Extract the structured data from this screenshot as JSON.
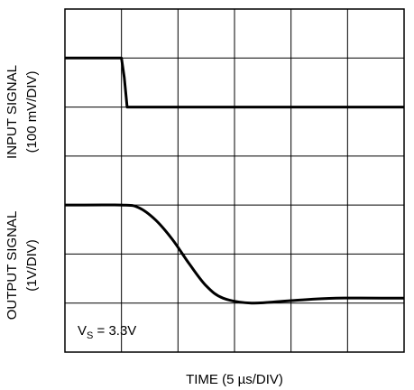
{
  "chart_data": {
    "type": "line",
    "xlabel": "TIME (5 µs/DIV)",
    "ylabel_input": [
      "INPUT SIGNAL",
      "(100 mV/DIV)"
    ],
    "ylabel_output": [
      "OUTPUT SIGNAL",
      "(1V/DIV)"
    ],
    "annotation": {
      "main": "V",
      "sub": "S",
      "rest": " = 3.3V"
    },
    "grid": {
      "on": true,
      "divisions_x": 6,
      "divisions_y": 7
    },
    "xlim": [
      0,
      6
    ],
    "ylim": [
      0,
      7
    ],
    "series": [
      {
        "x": [
          0,
          1.0,
          1.05,
          1.1,
          6.0
        ],
        "y": [
          6.0,
          6.0,
          5.6,
          5.0,
          5.0
        ]
      },
      {
        "x": [
          0,
          1.0,
          1.3,
          1.6,
          1.9,
          2.2,
          2.5,
          2.8,
          3.3,
          4.0,
          4.8,
          6.0
        ],
        "y": [
          3.0,
          3.0,
          2.95,
          2.7,
          2.3,
          1.8,
          1.35,
          1.1,
          1.0,
          1.05,
          1.1,
          1.1
        ]
      }
    ]
  }
}
